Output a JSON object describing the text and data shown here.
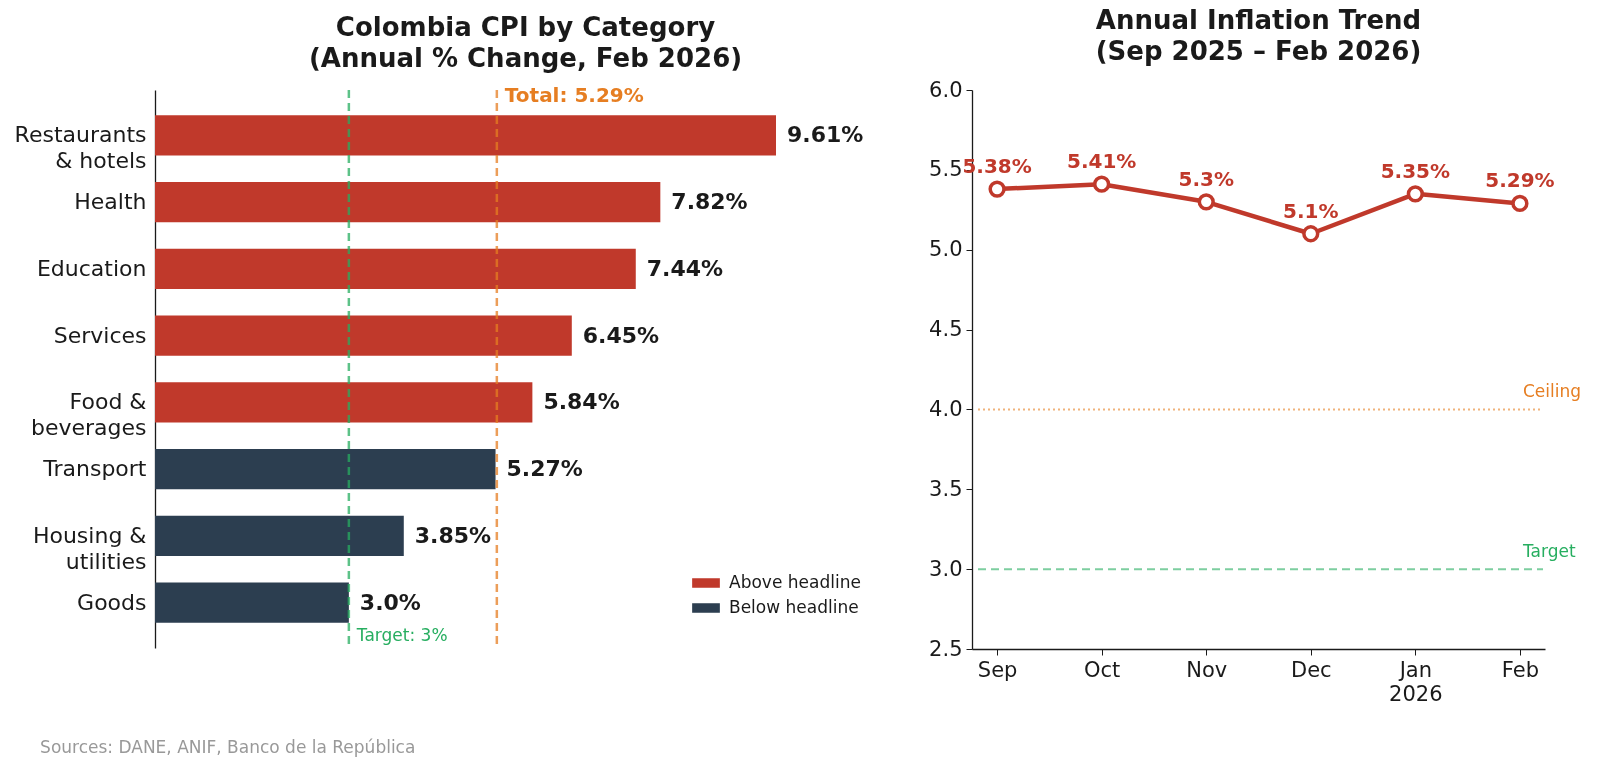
{
  "chart_data": [
    {
      "type": "bar",
      "title": "Colombia CPI by Category\n(Annual % Change, Feb 2026)",
      "orientation": "horizontal",
      "categories": [
        "Restaurants\n& hotels",
        "Health",
        "Education",
        "Services",
        "Food &\nbeverages",
        "Transport",
        "Housing &\nutilities",
        "Goods"
      ],
      "series": [
        {
          "name": "Above headline",
          "color": "#c0392b",
          "values": [
            9.61,
            7.82,
            7.44,
            6.45,
            5.84,
            null,
            null,
            null
          ],
          "value_labels": [
            "9.61%",
            "7.82%",
            "7.44%",
            "6.45%",
            "5.84%",
            null,
            null,
            null
          ]
        },
        {
          "name": "Below headline",
          "color": "#2c3e50",
          "values": [
            null,
            null,
            null,
            null,
            null,
            5.27,
            3.85,
            3.0
          ],
          "value_labels": [
            null,
            null,
            null,
            null,
            null,
            "5.27%",
            "3.85%",
            "3.0%"
          ]
        }
      ],
      "tick_labels": "y",
      "legend": "bottom right",
      "ref_lines": [
        {
          "axis": "x",
          "value": 3,
          "label": "Target: 3%",
          "color": "#27ae60",
          "line_style": "dashed"
        },
        {
          "axis": "x",
          "value": 5.29,
          "label": "Total: 5.29%",
          "color": "#e67e22",
          "line_style": "dashed"
        }
      ],
      "annotations": [
        "Sources: DANE, ANIF, Banco de la República"
      ]
    },
    {
      "type": "line",
      "title": "Annual Inflation Trend\n(Sep 2025 – Feb 2026)",
      "categories": [
        "Sep",
        "Oct",
        "Nov",
        "Dec",
        "Jan\n2026",
        "Feb"
      ],
      "series": [
        {
          "color": "#c0392b",
          "values": [
            5.38,
            5.41,
            5.3,
            5.1,
            5.35,
            5.29
          ],
          "value_labels": [
            "5.38%",
            "5.41%",
            "5.3%",
            "5.1%",
            "5.35%",
            "5.29%"
          ]
        }
      ],
      "ylim": [
        2.5,
        6.0
      ],
      "yticks": [
        2.5,
        {
          "value": 3,
          "label": "3.0"
        },
        3.5,
        {
          "value": 4,
          "label": "4.0"
        },
        4.5,
        {
          "value": 5,
          "label": "5.0"
        },
        5.5,
        {
          "value": 6,
          "label": "6.0"
        }
      ],
      "marker": "circle",
      "line_style": "solid",
      "ref_lines": [
        {
          "axis": "y",
          "value": 4,
          "label": "Ceiling",
          "color": "#e67e22",
          "line_style": "dotted"
        },
        {
          "axis": "y",
          "value": 3,
          "label": "Target",
          "color": "#27ae60",
          "line_style": "dashed"
        }
      ]
    }
  ]
}
